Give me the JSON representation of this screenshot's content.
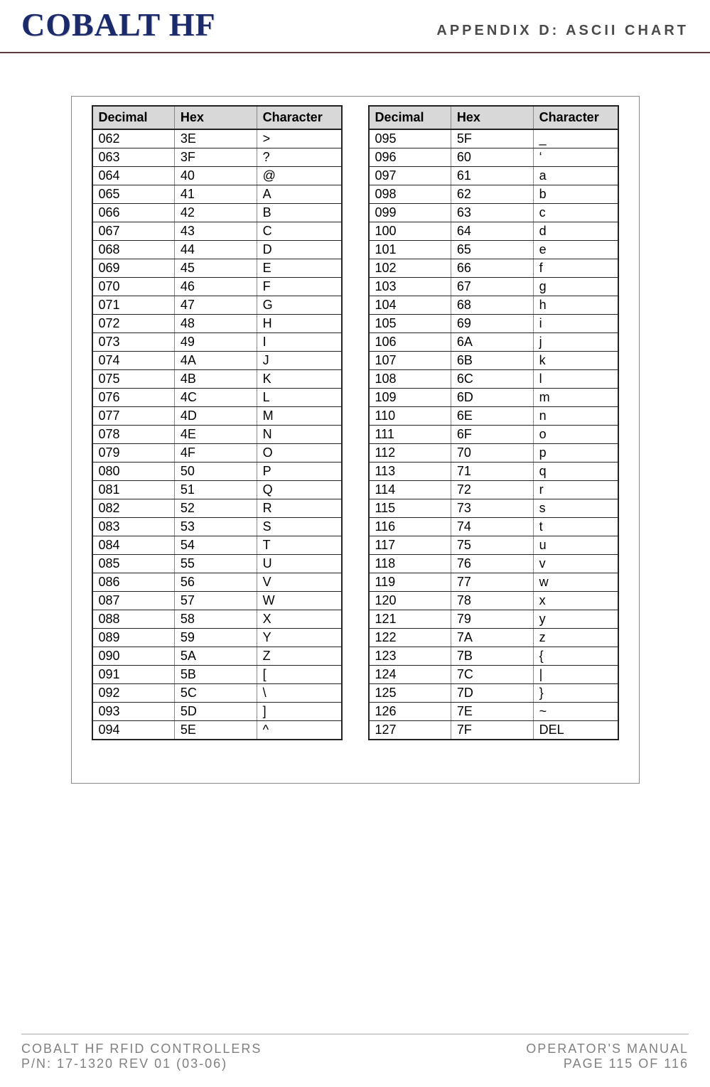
{
  "header": {
    "logo": "COBALT HF",
    "appendix": "APPENDIX D: ASCII CHART"
  },
  "table": {
    "headers": {
      "decimal": "Decimal",
      "hex": "Hex",
      "character": "Character"
    },
    "left": [
      {
        "dec": "062",
        "hex": "3E",
        "chr": ">"
      },
      {
        "dec": "063",
        "hex": "3F",
        "chr": "?"
      },
      {
        "dec": "064",
        "hex": "40",
        "chr": "@"
      },
      {
        "dec": "065",
        "hex": "41",
        "chr": "A"
      },
      {
        "dec": "066",
        "hex": "42",
        "chr": "B"
      },
      {
        "dec": "067",
        "hex": "43",
        "chr": "C"
      },
      {
        "dec": "068",
        "hex": "44",
        "chr": "D"
      },
      {
        "dec": "069",
        "hex": "45",
        "chr": "E"
      },
      {
        "dec": "070",
        "hex": "46",
        "chr": "F"
      },
      {
        "dec": "071",
        "hex": "47",
        "chr": "G"
      },
      {
        "dec": "072",
        "hex": "48",
        "chr": "H"
      },
      {
        "dec": "073",
        "hex": "49",
        "chr": "I"
      },
      {
        "dec": "074",
        "hex": "4A",
        "chr": "J"
      },
      {
        "dec": "075",
        "hex": "4B",
        "chr": "K"
      },
      {
        "dec": "076",
        "hex": "4C",
        "chr": "L"
      },
      {
        "dec": "077",
        "hex": "4D",
        "chr": "M"
      },
      {
        "dec": "078",
        "hex": "4E",
        "chr": "N"
      },
      {
        "dec": "079",
        "hex": "4F",
        "chr": "O"
      },
      {
        "dec": "080",
        "hex": "50",
        "chr": "P"
      },
      {
        "dec": "081",
        "hex": "51",
        "chr": "Q"
      },
      {
        "dec": "082",
        "hex": "52",
        "chr": "R"
      },
      {
        "dec": "083",
        "hex": "53",
        "chr": "S"
      },
      {
        "dec": "084",
        "hex": "54",
        "chr": "T"
      },
      {
        "dec": "085",
        "hex": "55",
        "chr": "U"
      },
      {
        "dec": "086",
        "hex": "56",
        "chr": "V"
      },
      {
        "dec": "087",
        "hex": "57",
        "chr": "W"
      },
      {
        "dec": "088",
        "hex": "58",
        "chr": "X"
      },
      {
        "dec": "089",
        "hex": "59",
        "chr": "Y"
      },
      {
        "dec": "090",
        "hex": "5A",
        "chr": "Z"
      },
      {
        "dec": "091",
        "hex": "5B",
        "chr": "["
      },
      {
        "dec": "092",
        "hex": "5C",
        "chr": "\\"
      },
      {
        "dec": "093",
        "hex": "5D",
        "chr": "]"
      },
      {
        "dec": "094",
        "hex": "5E",
        "chr": "^"
      }
    ],
    "right": [
      {
        "dec": "095",
        "hex": "5F",
        "chr": "_"
      },
      {
        "dec": "096",
        "hex": "60",
        "chr": "‘"
      },
      {
        "dec": "097",
        "hex": "61",
        "chr": "a"
      },
      {
        "dec": "098",
        "hex": "62",
        "chr": "b"
      },
      {
        "dec": "099",
        "hex": "63",
        "chr": "c"
      },
      {
        "dec": "100",
        "hex": "64",
        "chr": "d"
      },
      {
        "dec": "101",
        "hex": "65",
        "chr": "e"
      },
      {
        "dec": "102",
        "hex": "66",
        "chr": "f"
      },
      {
        "dec": "103",
        "hex": "67",
        "chr": "g"
      },
      {
        "dec": "104",
        "hex": "68",
        "chr": "h"
      },
      {
        "dec": "105",
        "hex": "69",
        "chr": "i"
      },
      {
        "dec": "106",
        "hex": "6A",
        "chr": "j"
      },
      {
        "dec": "107",
        "hex": "6B",
        "chr": "k"
      },
      {
        "dec": "108",
        "hex": "6C",
        "chr": "l"
      },
      {
        "dec": "109",
        "hex": "6D",
        "chr": "m"
      },
      {
        "dec": "110",
        "hex": "6E",
        "chr": "n"
      },
      {
        "dec": "111",
        "hex": "6F",
        "chr": "o"
      },
      {
        "dec": "112",
        "hex": "70",
        "chr": "p"
      },
      {
        "dec": "113",
        "hex": "71",
        "chr": "q"
      },
      {
        "dec": "114",
        "hex": "72",
        "chr": "r"
      },
      {
        "dec": "115",
        "hex": "73",
        "chr": "s"
      },
      {
        "dec": "116",
        "hex": "74",
        "chr": "t"
      },
      {
        "dec": "117",
        "hex": "75",
        "chr": "u"
      },
      {
        "dec": "118",
        "hex": "76",
        "chr": "v"
      },
      {
        "dec": "119",
        "hex": "77",
        "chr": "w"
      },
      {
        "dec": "120",
        "hex": "78",
        "chr": "x"
      },
      {
        "dec": "121",
        "hex": "79",
        "chr": "y"
      },
      {
        "dec": "122",
        "hex": "7A",
        "chr": "z"
      },
      {
        "dec": "123",
        "hex": "7B",
        "chr": "{"
      },
      {
        "dec": "124",
        "hex": "7C",
        "chr": "|"
      },
      {
        "dec": "125",
        "hex": "7D",
        "chr": "}"
      },
      {
        "dec": "126",
        "hex": "7E",
        "chr": "~"
      },
      {
        "dec": "127",
        "hex": "7F",
        "chr": "DEL"
      }
    ]
  },
  "footer": {
    "left_line1": "COBALT HF RFID CONTROLLERS",
    "left_line2": "P/N: 17-1320 REV 01 (03-06)",
    "right_line1": "OPERATOR'S MANUAL",
    "right_line2": "PAGE 115 OF 116"
  },
  "style": {
    "page_bg": "#ffffff",
    "logo_color": "#1a2a6a",
    "header_rule_color": "#5a3a3a",
    "th_bg": "#d8d8d8",
    "border_color": "#222222",
    "light_border": "#888888",
    "footer_color": "#808080",
    "font_size_cell": 18,
    "font_size_logo": 46,
    "font_size_appendix": 20,
    "font_size_footer": 18
  }
}
